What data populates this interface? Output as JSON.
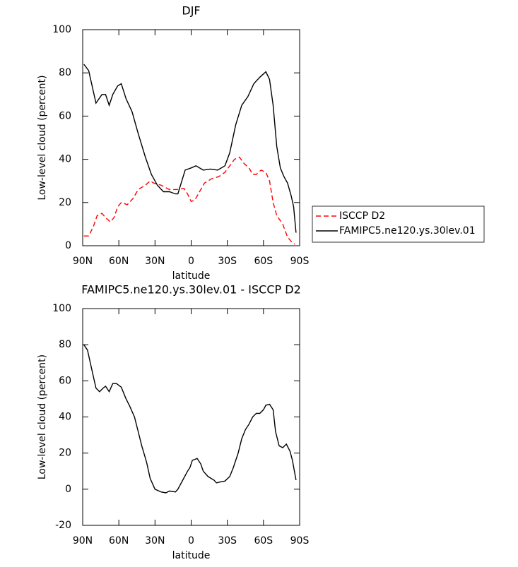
{
  "chart_data": [
    {
      "type": "line",
      "title": "DJF",
      "xlabel": "latitude",
      "ylabel": "Low-level cloud (percent)",
      "xlim": [
        90,
        -90
      ],
      "ylim": [
        0,
        100
      ],
      "xticks": [
        {
          "value": 90,
          "label": "90N"
        },
        {
          "value": 60,
          "label": "60N"
        },
        {
          "value": 30,
          "label": "30N"
        },
        0,
        {
          "value": -30,
          "label": "30S"
        },
        {
          "value": -60,
          "label": "60S"
        },
        {
          "value": -90,
          "label": "90S"
        }
      ],
      "yticks": [
        0,
        20,
        40,
        60,
        80,
        100
      ],
      "legend": "right",
      "series": [
        {
          "name": "ISCCP D2",
          "color": "#ff0000",
          "dash": true,
          "x": [
            89,
            85,
            81,
            78,
            74,
            71,
            67,
            64,
            61,
            58,
            53,
            48,
            44,
            38,
            34,
            31,
            25,
            18,
            12,
            6,
            3,
            0,
            -3,
            -7,
            -11,
            -17,
            -23,
            -28,
            -32,
            -36,
            -40,
            -44,
            -48,
            -51,
            -54,
            -58,
            -62,
            -65,
            -68,
            -71,
            -76,
            -80,
            -83,
            -86
          ],
          "values": [
            4.5,
            4.5,
            9,
            14,
            15,
            13,
            11,
            13,
            18,
            20,
            19,
            22,
            26,
            28,
            30,
            29,
            28,
            26,
            26,
            26.5,
            24,
            20.5,
            21,
            25,
            29,
            31,
            32,
            34,
            37,
            40,
            41,
            38,
            36,
            33,
            33,
            35,
            34,
            30,
            20,
            14,
            10,
            4,
            2,
            0.7
          ]
        },
        {
          "name": "FAMIPC5.ne120.ys.30lev.01",
          "color": "#000000",
          "dash": false,
          "x": [
            89,
            85,
            79,
            74,
            71,
            68,
            65,
            61,
            58,
            54,
            49,
            44,
            38,
            33,
            28,
            23,
            18,
            13,
            11,
            5,
            0,
            -4,
            -10,
            -16,
            -22,
            -28,
            -32,
            -37,
            -42,
            -47,
            -52,
            -57,
            -62,
            -65,
            -68,
            -71,
            -74,
            -77,
            -80,
            -83,
            -85,
            -87
          ],
          "values": [
            84,
            81,
            66,
            70,
            70,
            65,
            70,
            74,
            75,
            68,
            62,
            52,
            41,
            33,
            28,
            25,
            25,
            24,
            24,
            35,
            36,
            37,
            35,
            35.5,
            35,
            37,
            43,
            56,
            65,
            69,
            75,
            78,
            80.5,
            77,
            65,
            46,
            36,
            32,
            29,
            23,
            18,
            6
          ]
        }
      ]
    },
    {
      "type": "line",
      "title": "FAMIPC5.ne120.ys.30lev.01 - ISCCP D2",
      "xlabel": "latitude",
      "ylabel": "Low-level cloud (percent)",
      "xlim": [
        90,
        -90
      ],
      "ylim": [
        -20,
        100
      ],
      "xticks": [
        {
          "value": 90,
          "label": "90N"
        },
        {
          "value": 60,
          "label": "60N"
        },
        {
          "value": 30,
          "label": "30N"
        },
        0,
        {
          "value": -30,
          "label": "30S"
        },
        {
          "value": -60,
          "label": "60S"
        },
        {
          "value": -90,
          "label": "90S"
        }
      ],
      "yticks": [
        -20,
        0,
        20,
        40,
        60,
        80,
        100
      ],
      "series": [
        {
          "color": "#000000",
          "dash": false,
          "x": [
            89,
            86,
            82,
            79,
            76,
            73,
            71,
            68,
            65,
            62,
            58,
            54,
            51,
            47,
            44,
            41,
            37,
            34,
            30,
            25,
            21,
            18,
            13,
            11,
            7,
            3,
            1,
            -1,
            -5,
            -8,
            -10,
            -14,
            -19,
            -21,
            -24,
            -28,
            -32,
            -35,
            -39,
            -42,
            -45,
            -48,
            -51,
            -54,
            -57,
            -60,
            -62,
            -65,
            -68,
            -70,
            -73,
            -76,
            -79,
            -82,
            -84,
            -87
          ],
          "values": [
            80,
            77,
            65,
            56,
            54,
            56,
            57,
            54,
            58.5,
            58.5,
            56.5,
            50,
            46,
            40,
            32,
            24,
            15,
            6,
            0,
            -1.5,
            -2,
            -1,
            -1.5,
            0,
            5,
            10,
            12,
            16,
            17,
            14,
            10,
            7,
            5,
            3.5,
            4,
            4.5,
            7,
            12,
            20,
            28,
            33,
            36,
            40,
            42,
            42,
            44,
            46.5,
            47,
            44,
            32,
            24,
            23,
            25,
            21,
            16,
            5
          ]
        }
      ]
    }
  ]
}
